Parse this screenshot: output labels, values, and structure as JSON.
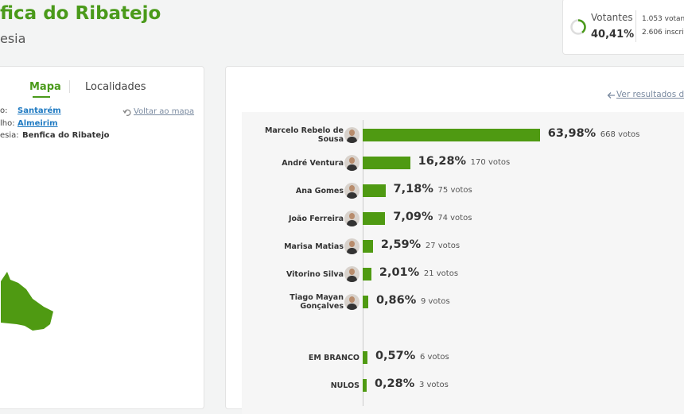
{
  "header": {
    "title": "fica do Ribatejo",
    "subtitle": "esia"
  },
  "turnout": {
    "label": "Votantes",
    "value": "40,41%",
    "voters": "1.053 votant",
    "registered": "2.606 inscrit"
  },
  "tabs": [
    "Mapa",
    "Localidades"
  ],
  "location": {
    "rows": [
      {
        "label": "o:",
        "value": "Santarém"
      },
      {
        "label": "lho:",
        "value": "Almeirim"
      },
      {
        "label": "esia:",
        "value": "Benfica do Ribatejo"
      }
    ],
    "back": "Voltar ao mapa"
  },
  "results_link": "Ver resultados de",
  "chart_data": {
    "type": "bar",
    "orientation": "horizontal",
    "categories": [
      "Marcelo Rebelo de Sousa",
      "André Ventura",
      "Ana Gomes",
      "João Ferreira",
      "Marisa Matias",
      "Vitorino Silva",
      "Tiago Mayan Gonçalves",
      "EM BRANCO",
      "NULOS"
    ],
    "values": [
      63.98,
      16.28,
      7.18,
      7.09,
      2.59,
      2.01,
      0.86,
      0.57,
      0.28
    ],
    "value_labels": [
      "63,98%",
      "16,28%",
      "7,18%",
      "7,09%",
      "2,59%",
      "2,01%",
      "0,86%",
      "0,57%",
      "0,28%"
    ],
    "vote_labels": [
      "668 votos",
      "170 votos",
      "75 votos",
      "74 votos",
      "27 votos",
      "21 votos",
      "9 votos",
      "6 votos",
      "3 votos"
    ],
    "color": "#4f9a12"
  }
}
